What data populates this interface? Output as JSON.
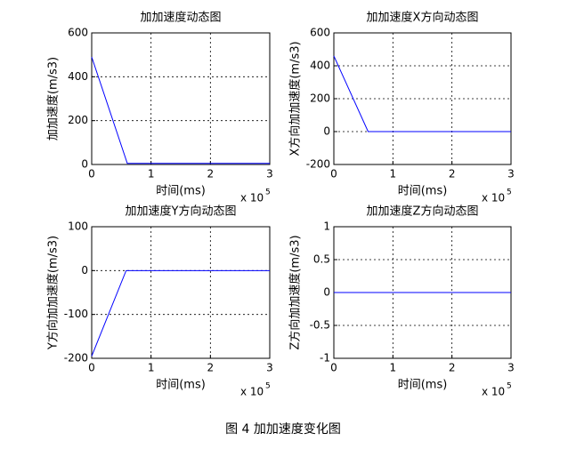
{
  "chart_data": [
    {
      "type": "line",
      "title": "加加速度动态图",
      "xlabel": "时间(ms)",
      "ylabel": "加加速度(m/s3)",
      "x_scale": {
        "base": "x 10",
        "exp": "5"
      },
      "x": [
        0,
        0.6,
        3
      ],
      "series": [
        {
          "color": "#0000ff",
          "values": [
            490,
            5,
            5
          ]
        }
      ],
      "xlim": [
        0,
        3
      ],
      "ylim": [
        0,
        600
      ],
      "xticks": [
        0,
        1,
        2,
        3
      ],
      "yticks": [
        0,
        200,
        400,
        600
      ],
      "grid": true
    },
    {
      "type": "line",
      "title": "加加速度X方向动态图",
      "xlabel": "时间(ms)",
      "ylabel": "X方向加加速度(m/s3)",
      "x_scale": {
        "base": "x 10",
        "exp": "5"
      },
      "x": [
        0,
        0.58,
        3
      ],
      "series": [
        {
          "color": "#0000ff",
          "values": [
            460,
            0,
            0
          ]
        }
      ],
      "xlim": [
        0,
        3
      ],
      "ylim": [
        -200,
        600
      ],
      "xticks": [
        0,
        1,
        2,
        3
      ],
      "yticks": [
        -200,
        0,
        200,
        400,
        600
      ],
      "grid": true
    },
    {
      "type": "line",
      "title": "加加速度Y方向动态图",
      "xlabel": "时间(ms)",
      "ylabel": "Y方向加加速度(m/s3)",
      "x_scale": {
        "base": "x 10",
        "exp": "5"
      },
      "x": [
        0,
        0.58,
        3
      ],
      "series": [
        {
          "color": "#0000ff",
          "values": [
            -195,
            0,
            0
          ]
        }
      ],
      "xlim": [
        0,
        3
      ],
      "ylim": [
        -200,
        100
      ],
      "xticks": [
        0,
        1,
        2,
        3
      ],
      "yticks": [
        -200,
        -100,
        0,
        100
      ],
      "grid": true
    },
    {
      "type": "line",
      "title": "加加速度Z方向动态图",
      "xlabel": "时间(ms)",
      "ylabel": "Z方向加加速度(m/s3)",
      "x_scale": {
        "base": "x 10",
        "exp": "5"
      },
      "x": [
        0,
        3
      ],
      "series": [
        {
          "color": "#0000ff",
          "values": [
            0,
            0
          ]
        }
      ],
      "xlim": [
        0,
        3
      ],
      "ylim": [
        -1,
        1
      ],
      "xticks": [
        0,
        1,
        2,
        3
      ],
      "yticks": [
        -1,
        -0.5,
        0,
        0.5,
        1
      ],
      "grid": true
    }
  ],
  "caption": "图 4 加加速度变化图"
}
